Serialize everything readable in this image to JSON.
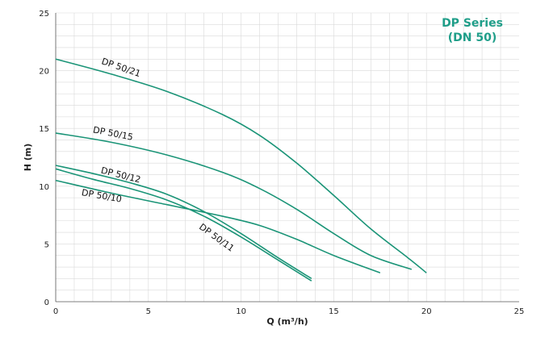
{
  "chart_data": {
    "type": "line",
    "title": "DP Series",
    "subtitle": "(DN 50)",
    "title_color": "#1f9e89",
    "line_color": "#1a9477",
    "xlabel": "Q (m³/h)",
    "ylabel": "H (m)",
    "xlim": [
      0,
      25
    ],
    "ylim": [
      0,
      25
    ],
    "xticks": [
      0,
      5,
      10,
      15,
      20,
      25
    ],
    "yticks": [
      0,
      5,
      10,
      15,
      20,
      25
    ],
    "x_tick_labels": [
      "0",
      "5",
      "10",
      "15",
      "20",
      "25"
    ],
    "y_tick_labels": [
      "0",
      "5",
      "10",
      "15",
      "20",
      "25"
    ],
    "grid": true,
    "series": [
      {
        "name": "DP 50/21",
        "x": [
          0,
          3,
          6,
          9,
          11,
          13,
          15,
          17,
          19,
          20
        ],
        "y": [
          21,
          19.7,
          18.2,
          16.2,
          14.4,
          12.0,
          9.2,
          6.3,
          3.8,
          2.5
        ]
      },
      {
        "name": "DP 50/15",
        "x": [
          0,
          3,
          6,
          9,
          11,
          13,
          15,
          17,
          19.2
        ],
        "y": [
          14.6,
          13.8,
          12.7,
          11.2,
          9.8,
          8.0,
          5.9,
          4.0,
          2.8
        ]
      },
      {
        "name": "DP 50/12",
        "x": [
          0,
          2,
          4,
          6,
          8,
          10,
          12,
          13.8
        ],
        "y": [
          11.8,
          11.1,
          10.3,
          9.3,
          7.8,
          5.9,
          3.8,
          2.0
        ]
      },
      {
        "name": "DP 50/11",
        "x": [
          0,
          2,
          4,
          6,
          8,
          10,
          12,
          13.8
        ],
        "y": [
          11.5,
          10.6,
          9.8,
          8.8,
          7.4,
          5.6,
          3.6,
          1.8
        ]
      },
      {
        "name": "DP 50/10",
        "x": [
          0,
          3,
          6,
          9,
          11,
          13,
          15,
          17.5
        ],
        "y": [
          10.5,
          9.4,
          8.4,
          7.4,
          6.6,
          5.4,
          4.0,
          2.5
        ]
      }
    ]
  }
}
